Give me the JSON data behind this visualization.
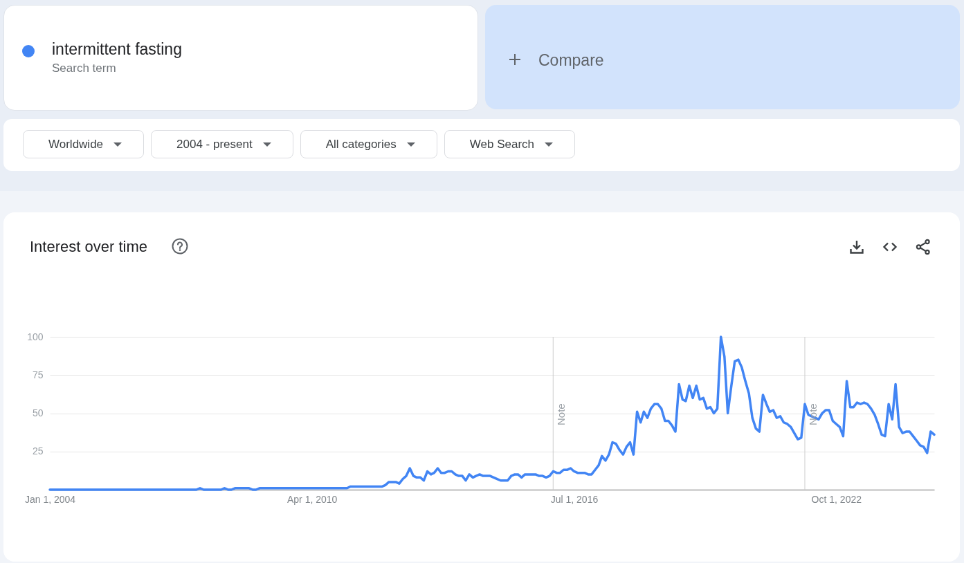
{
  "chart_data": {
    "type": "line",
    "title": "Interest over time",
    "x": [
      "2004-01",
      "2007-07",
      "2007-08",
      "2007-09",
      "2008-02",
      "2008-03",
      "2008-04",
      "2008-05",
      "2008-06",
      "2008-10",
      "2008-11",
      "2008-12",
      "2009-01",
      "2011-02",
      "2011-03",
      "2011-12",
      "2012-01",
      "2012-02",
      "2012-03",
      "2012-04",
      "2012-05",
      "2012-06",
      "2012-07",
      "2012-08",
      "2012-09",
      "2012-10",
      "2012-11",
      "2012-12",
      "2013-01",
      "2013-02",
      "2013-03",
      "2013-04",
      "2013-05",
      "2013-06",
      "2013-07",
      "2013-08",
      "2013-09",
      "2013-10",
      "2013-11",
      "2013-12",
      "2014-01",
      "2014-02",
      "2014-03",
      "2014-04",
      "2014-05",
      "2014-06",
      "2014-07",
      "2014-08",
      "2014-09",
      "2014-10",
      "2014-11",
      "2014-12",
      "2015-01",
      "2015-02",
      "2015-03",
      "2015-04",
      "2015-05",
      "2015-06",
      "2015-07",
      "2015-08",
      "2015-09",
      "2015-10",
      "2015-11",
      "2015-12",
      "2016-01",
      "2016-02",
      "2016-03",
      "2016-04",
      "2016-05",
      "2016-06",
      "2016-07",
      "2016-08",
      "2016-09",
      "2016-10",
      "2016-11",
      "2016-12",
      "2017-01",
      "2017-02",
      "2017-03",
      "2017-04",
      "2017-05",
      "2017-06",
      "2017-07",
      "2017-08",
      "2017-09",
      "2017-10",
      "2017-11",
      "2017-12",
      "2018-01",
      "2018-02",
      "2018-03",
      "2018-04",
      "2018-05",
      "2018-06",
      "2018-07",
      "2018-08",
      "2018-09",
      "2018-10",
      "2018-11",
      "2018-12",
      "2019-01",
      "2019-02",
      "2019-03",
      "2019-04",
      "2019-05",
      "2019-06",
      "2019-07",
      "2019-08",
      "2019-09",
      "2019-10",
      "2019-11",
      "2019-12",
      "2020-01",
      "2020-02",
      "2020-03",
      "2020-04",
      "2020-05",
      "2020-06",
      "2020-07",
      "2020-08",
      "2020-09",
      "2020-10",
      "2020-11",
      "2020-12",
      "2021-01",
      "2021-02",
      "2021-03",
      "2021-04",
      "2021-05",
      "2021-06",
      "2021-07",
      "2021-08",
      "2021-09",
      "2021-10",
      "2021-11",
      "2021-12",
      "2022-01",
      "2022-02",
      "2022-03",
      "2022-04",
      "2022-05",
      "2022-06",
      "2022-07",
      "2022-08",
      "2022-09",
      "2022-10",
      "2022-11",
      "2022-12",
      "2023-01",
      "2023-02",
      "2023-03",
      "2023-04",
      "2023-05",
      "2023-06",
      "2023-07",
      "2023-08",
      "2023-09",
      "2023-10",
      "2023-11",
      "2023-12",
      "2024-01",
      "2024-02",
      "2024-03",
      "2024-04",
      "2024-05",
      "2024-06",
      "2024-07",
      "2024-08",
      "2024-09",
      "2024-10",
      "2024-11",
      "2024-12",
      "2025-01",
      "2025-02"
    ],
    "series": [
      {
        "name": "intermittent fasting",
        "color": "#4285f4",
        "values": [
          0,
          0,
          1,
          0,
          0,
          1,
          0,
          0,
          1,
          1,
          0,
          0,
          1,
          1,
          2,
          2,
          3,
          5,
          5,
          5,
          4,
          7,
          9,
          14,
          9,
          8,
          8,
          6,
          12,
          10,
          11,
          14,
          11,
          11,
          12,
          12,
          10,
          9,
          9,
          6,
          10,
          8,
          9,
          10,
          9,
          9,
          9,
          8,
          7,
          6,
          6,
          6,
          9,
          10,
          10,
          8,
          10,
          10,
          10,
          10,
          9,
          9,
          8,
          9,
          12,
          11,
          11,
          13,
          13,
          14,
          12,
          11,
          11,
          11,
          10,
          10,
          13,
          16,
          22,
          19,
          23,
          31,
          30,
          26,
          23,
          28,
          31,
          23,
          51,
          44,
          51,
          47,
          53,
          56,
          56,
          53,
          45,
          45,
          42,
          38,
          69,
          59,
          58,
          68,
          60,
          68,
          59,
          60,
          53,
          54,
          50,
          53,
          100,
          87,
          50,
          68,
          84,
          85,
          80,
          71,
          63,
          47,
          40,
          38,
          62,
          56,
          51,
          52,
          47,
          48,
          44,
          43,
          41,
          37,
          33,
          34,
          56,
          49,
          48,
          47,
          46,
          50,
          52,
          52,
          45,
          43,
          41,
          35,
          71,
          54,
          54,
          57,
          56,
          57,
          56,
          53,
          49,
          43,
          36,
          35,
          56,
          46,
          69,
          41,
          37,
          38,
          38,
          35,
          32,
          29,
          28,
          24,
          38,
          36
        ]
      }
    ],
    "xlim": [
      "2004-01",
      "2025-02"
    ],
    "xticks": [
      {
        "value": "2004-01-01",
        "label": "Jan 1, 2004"
      },
      {
        "value": "2010-04-01",
        "label": "Apr 1, 2010"
      },
      {
        "value": "2016-07-01",
        "label": "Jul 1, 2016"
      },
      {
        "value": "2022-10-01",
        "label": "Oct 1, 2022"
      }
    ],
    "ylim": [
      0,
      100
    ],
    "yticks": [
      {
        "value": 0,
        "label": null
      },
      25,
      50,
      75,
      100
    ],
    "grid": "y",
    "legend": "top left",
    "ref_lines": [
      {
        "axis": "x",
        "value": "2016-01",
        "label": "Note",
        "color": "#cccccc"
      },
      {
        "axis": "x",
        "value": "2022-01",
        "label": "Note",
        "color": "#cccccc"
      }
    ],
    "annotations": [
      "Search term",
      "Compare",
      "Worldwide",
      "2004 - present",
      "All categories",
      "Web Search"
    ]
  }
}
